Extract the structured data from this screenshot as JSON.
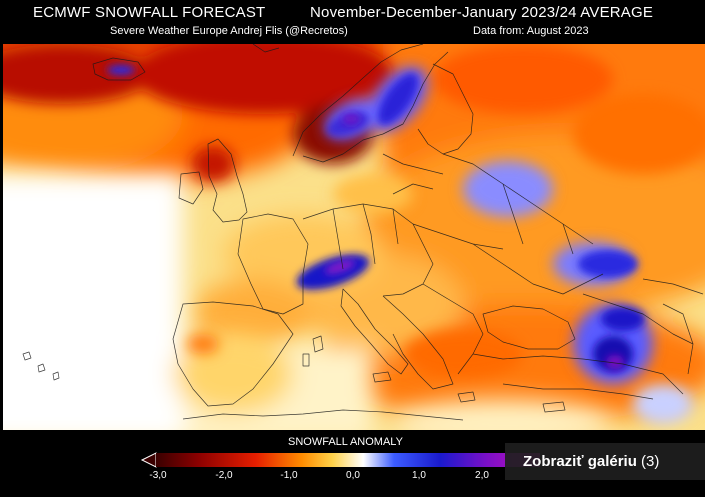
{
  "header": {
    "title_left": "ECMWF SNOWFALL FORECAST",
    "title_right": "November-December-January 2023/24 AVERAGE",
    "credit": "Severe Weather Europe   Andrej Flis (@Recretos)",
    "data_source": "Data from: August 2023"
  },
  "map": {
    "region": "Europe",
    "variable": "snowfall anomaly"
  },
  "legend": {
    "title": "SNOWFALL ANOMALY",
    "ticks": [
      "-3,0",
      "-2,0",
      "-1,0",
      "0,0",
      "1,0",
      "2,0"
    ],
    "colors": [
      "#3a0000",
      "#8b0000",
      "#e51e00",
      "#ff8c00",
      "#ffd24a",
      "#ffffff",
      "#3c5cff",
      "#1a1acc",
      "#7a0fc8",
      "#c80fb9"
    ]
  },
  "gallery": {
    "label": "Zobraziť galériu",
    "count": "(3)"
  }
}
